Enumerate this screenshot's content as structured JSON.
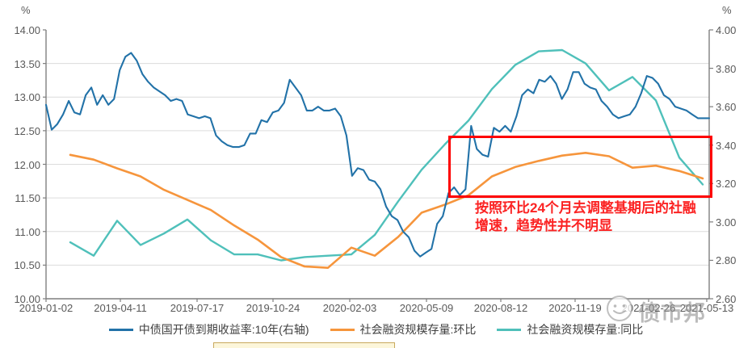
{
  "chart": {
    "unit_left": "%",
    "unit_right": "%",
    "watermark": {
      "text": "债市邦"
    },
    "annotation": {
      "line1": "按照环比24个月去调整基期后的社融",
      "line2": "增速，趋势性并不明显",
      "text_color": "#fb2323",
      "box_color": "#fe0000"
    },
    "legend": [
      {
        "label": "中债国开债到期收益率:10年(右轴)",
        "color": "#2272a8"
      },
      {
        "label": "社会融资规模存量:环比",
        "color": "#f6953c"
      },
      {
        "label": "社会融资规模存量:同比",
        "color": "#4fc0ba"
      }
    ]
  },
  "chart_data": {
    "type": "line",
    "title": "",
    "grid": "horizontal",
    "legend_position": "bottom",
    "x_tick_labels": [
      "2019-01-02",
      "2019-04-11",
      "2019-07-17",
      "2019-10-24",
      "2020-02-03",
      "2020-05-09",
      "2020-08-12",
      "2020-11-19",
      "2021-02-26",
      "2021-05-13"
    ],
    "y_left": {
      "unit": "%",
      "min": 10.0,
      "max": 14.0,
      "tick_step": 0.5,
      "tick_labels": [
        "14.00",
        "13.50",
        "13.00",
        "12.50",
        "12.00",
        "11.50",
        "11.00",
        "10.50",
        "10.00"
      ]
    },
    "y_right": {
      "unit": "%",
      "min": 2.6,
      "max": 4.0,
      "tick_step": 0.2,
      "tick_labels": [
        "4.00",
        "3.80",
        "3.60",
        "3.40",
        "3.20",
        "3.00",
        "2.80",
        "2.60"
      ]
    },
    "months": [
      "2019-01",
      "2019-02",
      "2019-03",
      "2019-04",
      "2019-05",
      "2019-06",
      "2019-07",
      "2019-08",
      "2019-09",
      "2019-10",
      "2019-11",
      "2019-12",
      "2020-01",
      "2020-02",
      "2020-03",
      "2020-04",
      "2020-05",
      "2020-06",
      "2020-07",
      "2020-08",
      "2020-09",
      "2020-10",
      "2020-11",
      "2020-12",
      "2021-01",
      "2021-02",
      "2021-03",
      "2021-04"
    ],
    "series": [
      {
        "name": "中债国开债到期收益率:10年(右轴)",
        "axis": "right",
        "color": "#2272a8",
        "frequency": "daily",
        "x_start": "2019-01-02",
        "x_end": "2021-05-13",
        "values": [
          3.61,
          3.48,
          3.51,
          3.56,
          3.63,
          3.57,
          3.56,
          3.66,
          3.7,
          3.61,
          3.66,
          3.61,
          3.64,
          3.79,
          3.86,
          3.88,
          3.84,
          3.77,
          3.73,
          3.7,
          3.68,
          3.66,
          3.63,
          3.64,
          3.63,
          3.56,
          3.55,
          3.54,
          3.55,
          3.54,
          3.45,
          3.42,
          3.4,
          3.39,
          3.39,
          3.4,
          3.46,
          3.46,
          3.53,
          3.52,
          3.57,
          3.58,
          3.62,
          3.74,
          3.7,
          3.66,
          3.58,
          3.58,
          3.6,
          3.58,
          3.58,
          3.59,
          3.55,
          3.45,
          3.24,
          3.28,
          3.27,
          3.22,
          3.21,
          3.17,
          3.08,
          3.03,
          3.01,
          2.95,
          2.92,
          2.85,
          2.82,
          2.84,
          2.86,
          2.99,
          3.03,
          3.15,
          3.18,
          3.14,
          3.17,
          3.5,
          3.38,
          3.35,
          3.34,
          3.49,
          3.47,
          3.5,
          3.47,
          3.55,
          3.66,
          3.69,
          3.67,
          3.74,
          3.73,
          3.76,
          3.72,
          3.64,
          3.69,
          3.78,
          3.78,
          3.72,
          3.7,
          3.69,
          3.63,
          3.6,
          3.56,
          3.54,
          3.55,
          3.56,
          3.6,
          3.67,
          3.76,
          3.75,
          3.72,
          3.66,
          3.64,
          3.6,
          3.59,
          3.58,
          3.56,
          3.54,
          3.54,
          3.54
        ]
      },
      {
        "name": "社会融资规模存量:环比",
        "axis": "left",
        "color": "#f6953c",
        "frequency": "monthly",
        "values": [
          12.14,
          12.07,
          11.94,
          11.82,
          11.62,
          11.47,
          11.32,
          11.09,
          10.88,
          10.62,
          10.48,
          10.46,
          10.76,
          10.64,
          10.92,
          11.28,
          11.4,
          11.54,
          11.82,
          11.96,
          12.05,
          12.13,
          12.17,
          12.12,
          11.95,
          11.98,
          11.9,
          11.79
        ]
      },
      {
        "name": "社会融资规模存量:同比",
        "axis": "left",
        "color": "#4fc0ba",
        "frequency": "monthly",
        "values": [
          10.84,
          10.64,
          11.16,
          10.8,
          10.97,
          11.18,
          10.87,
          10.66,
          10.66,
          10.57,
          10.62,
          10.64,
          10.66,
          10.95,
          11.45,
          11.92,
          12.3,
          12.65,
          13.12,
          13.48,
          13.68,
          13.7,
          13.5,
          13.1,
          13.3,
          12.95,
          12.1,
          11.7
        ]
      }
    ],
    "annotation_box": {
      "text": "按照环比24个月去调整基期后的社融增速，趋势性并不明显",
      "covers_x_range": [
        "2020-06",
        "2021-04"
      ],
      "y_right_range": [
        3.13,
        3.44
      ]
    }
  }
}
